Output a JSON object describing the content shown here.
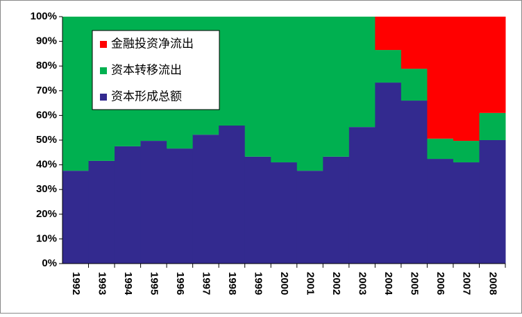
{
  "chart_data": {
    "type": "stacked_bar",
    "categories": [
      "1992",
      "1993",
      "1994",
      "1995",
      "1996",
      "1997",
      "1998",
      "1999",
      "2000",
      "2001",
      "2002",
      "2003",
      "2004",
      "2005",
      "2006",
      "2007",
      "2008"
    ],
    "series": [
      {
        "name": "资本形成总额",
        "color": "#332a8f",
        "values": [
          37.6,
          41.6,
          47.5,
          49.7,
          46.6,
          52.2,
          55.9,
          43.3,
          41.0,
          37.6,
          43.3,
          55.3,
          73.3,
          66.0,
          42.4,
          41.0,
          50.0
        ]
      },
      {
        "name": "资本转移流出",
        "color": "#00b050",
        "values": [
          62.4,
          58.4,
          52.5,
          50.3,
          53.4,
          47.8,
          44.1,
          56.7,
          59.0,
          62.4,
          56.7,
          44.7,
          13.2,
          12.9,
          8.2,
          8.7,
          11.0
        ]
      },
      {
        "name": "金融投资净流出",
        "color": "#ff0000",
        "values": [
          0,
          0,
          0,
          0,
          0,
          0,
          0,
          0,
          0,
          0,
          0,
          0,
          13.5,
          21.1,
          49.4,
          50.3,
          39.0
        ]
      }
    ],
    "ylim": [
      0,
      100
    ],
    "yticks": [
      {
        "value": 0,
        "label": "0%"
      },
      {
        "value": 10,
        "label": "10%"
      },
      {
        "value": 20,
        "label": "20%"
      },
      {
        "value": 30,
        "label": "30%"
      },
      {
        "value": 40,
        "label": "40%"
      },
      {
        "value": 50,
        "label": "50%"
      },
      {
        "value": 60,
        "label": "60%"
      },
      {
        "value": 70,
        "label": "70%"
      },
      {
        "value": 80,
        "label": "80%"
      },
      {
        "value": 90,
        "label": "90%"
      },
      {
        "value": 100,
        "label": "100%"
      }
    ],
    "legend": "upper-left"
  }
}
